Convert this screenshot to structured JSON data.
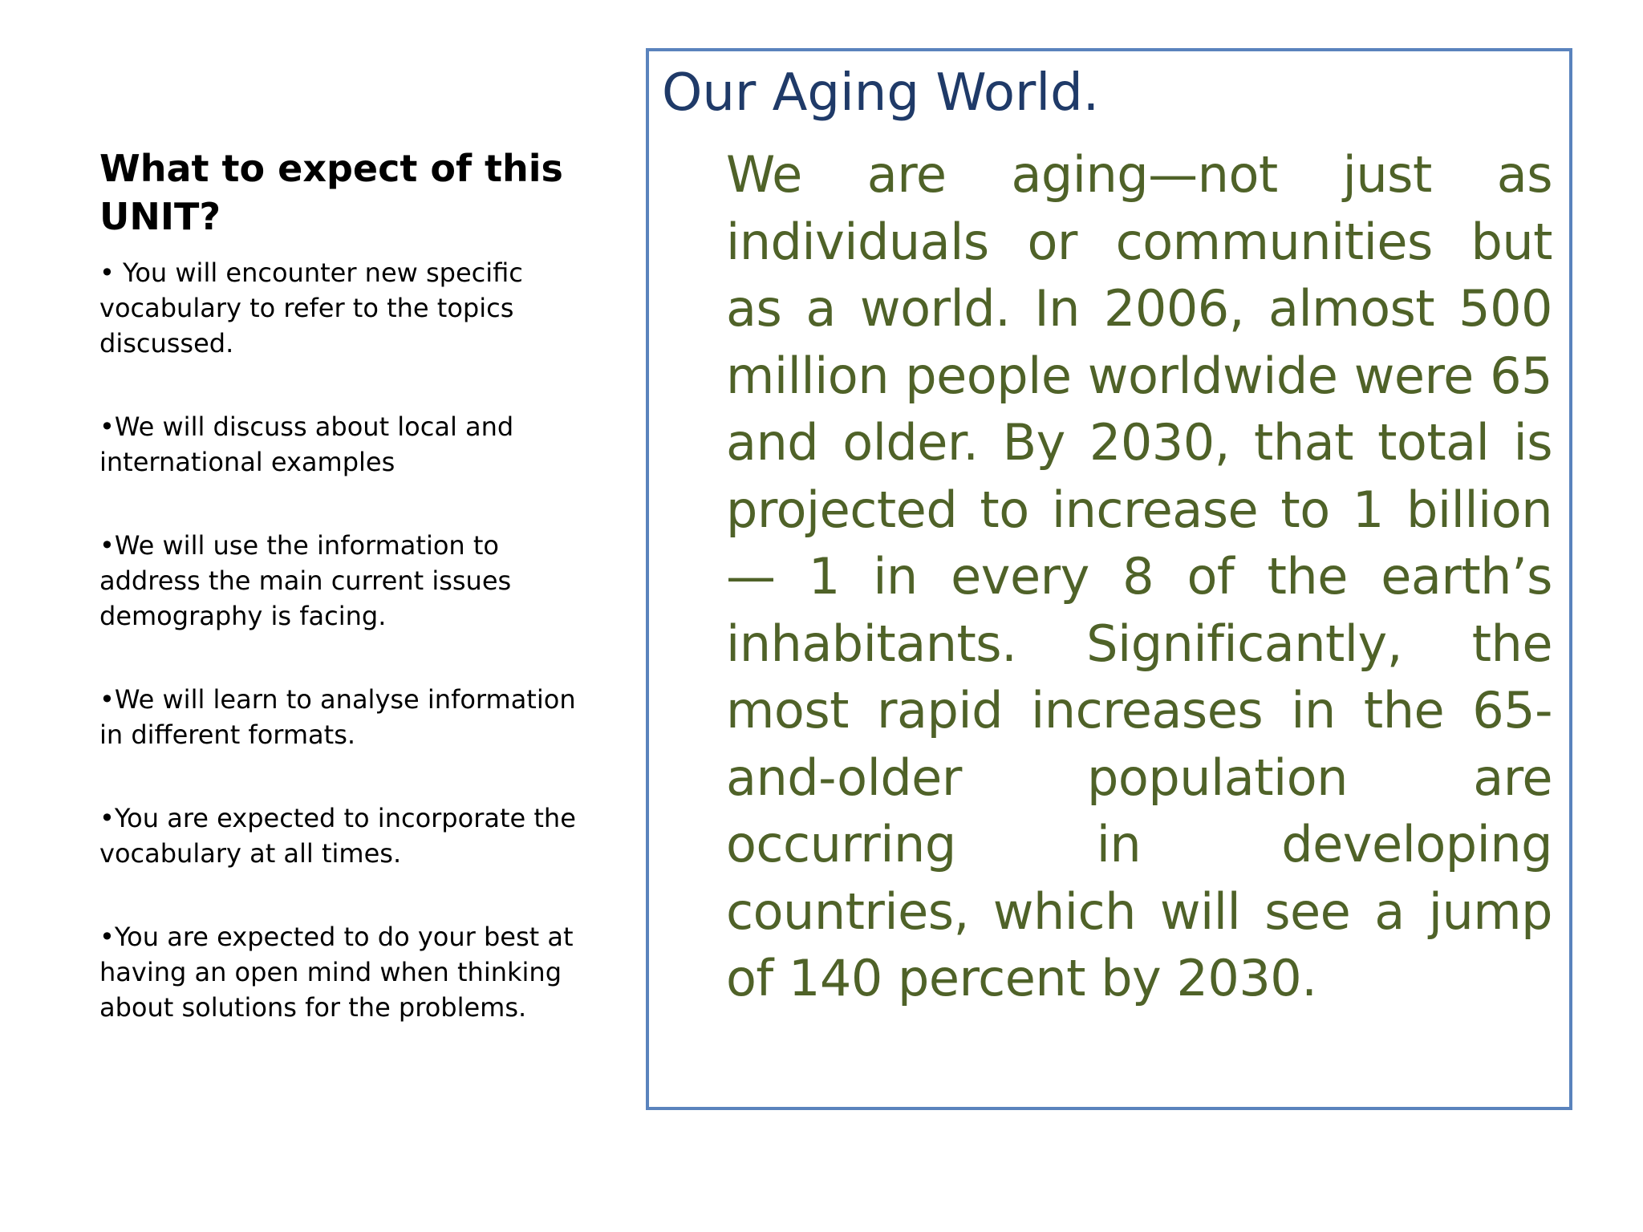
{
  "left_panel": {
    "heading": "What to expect of this UNIT?",
    "bullets": [
      "• You will encounter new specific vocabulary  to refer to the topics discussed.",
      "•We will discuss about local and international examples",
      "•We will use the information to address the main current issues demography is facing.",
      "•We will learn to analyse information in different formats.",
      "•You are expected to incorporate the vocabulary at all times.",
      "•You are expected to do your best at having an open mind when thinking about solutions for the problems."
    ]
  },
  "text_box": {
    "title": "Our Aging World.",
    "body": "We are aging—not just as individuals or  communities but as a world. In  2006, almost 500 million  people worldwide were 65 and older. By 2030, that total is projected to increase to 1 billion— 1 in every 8 of the earth’s inhabitants. Significantly, the most rapid increases in the 65-and-older population are occurring in developing countries, which will see a jump of 140 percent by 2030."
  },
  "colors": {
    "box_border": "#5a83bd",
    "title_color": "#1f3a68",
    "body_color": "#4f6228",
    "text_color": "#000000"
  }
}
